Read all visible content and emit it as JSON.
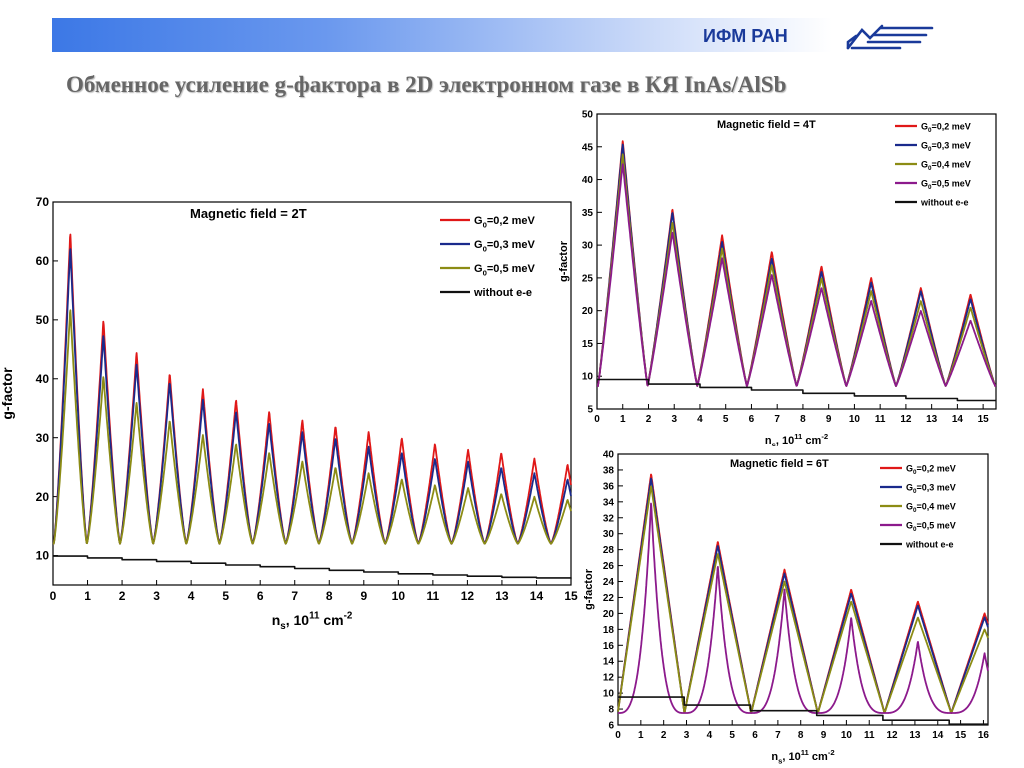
{
  "header": {
    "org": "ИФМ РАН"
  },
  "title": "Обменное усиление g-фактора в 2D электронном газе в КЯ InAs/AlSb",
  "chart_data": [
    {
      "id": "c2t",
      "type": "line",
      "title": "Magnetic field = 2T",
      "xlabel": "ns, 10^11 cm^-2",
      "xlabel_parts": {
        "main": "n",
        "sub": "s",
        "mid": ", 10",
        "sup1": "11",
        "unit": " cm",
        "sup2": "-2"
      },
      "ylabel": "g-factor",
      "xlim": [
        0,
        15
      ],
      "ylim": [
        5,
        70
      ],
      "xticks": [
        0,
        1,
        2,
        3,
        4,
        5,
        6,
        7,
        8,
        9,
        10,
        11,
        12,
        13,
        14,
        15
      ],
      "yticks": [
        10,
        20,
        30,
        40,
        50,
        60,
        70
      ],
      "legend_position": "top-right",
      "period": 0.96,
      "first_peak": 0.5,
      "ymin_osc": 12,
      "cusp": 1.3,
      "series": [
        {
          "label": {
            "g": "G",
            "sub": "0",
            "rest": "=0,2 meV"
          },
          "color": "#e01818",
          "kind": "osc",
          "peaks": [
            65,
            50,
            44.5,
            41,
            38.3,
            36.5,
            34.5,
            33,
            32,
            31,
            30,
            29,
            28,
            27.5,
            26.5,
            25.5
          ]
        },
        {
          "label": {
            "g": "G",
            "sub": "0",
            "rest": "=0,3 meV"
          },
          "color": "#1a2a8c",
          "kind": "osc",
          "peaks": [
            62.5,
            47.5,
            42.5,
            39.5,
            36.5,
            34.5,
            32.5,
            31,
            30,
            28.5,
            27.5,
            26.5,
            26,
            25,
            24,
            23
          ]
        },
        {
          "label": {
            "g": "G",
            "sub": "0",
            "rest": "=0,5 meV"
          },
          "color": "#8c8c14",
          "kind": "osc",
          "peaks": [
            52,
            40.5,
            36,
            33,
            30.5,
            29,
            27.5,
            26,
            25,
            24,
            23,
            22,
            21.5,
            20.5,
            20,
            19.5
          ]
        },
        {
          "label": {
            "g": "",
            "sub": "",
            "rest": "without e-e"
          },
          "color": "#111111",
          "kind": "step",
          "x": [
            0,
            1,
            2,
            3,
            4,
            5,
            6,
            7,
            8,
            9,
            10,
            11,
            12,
            13,
            14,
            15
          ],
          "values": [
            9.9,
            9.6,
            9.3,
            9.0,
            8.7,
            8.4,
            8.1,
            7.8,
            7.5,
            7.2,
            6.9,
            6.7,
            6.5,
            6.3,
            6.2,
            6.1
          ]
        }
      ]
    },
    {
      "id": "c4t",
      "type": "line",
      "title": "Magnetic field = 4T",
      "xlabel": "ns, 10^11 cm^-2",
      "xlabel_parts": {
        "main": "n",
        "sub": "s",
        "mid": ", 10",
        "sup1": "11",
        "unit": " cm",
        "sup2": "-2"
      },
      "ylabel": "g-factor",
      "xlim": [
        0,
        15.5
      ],
      "ylim": [
        5,
        50
      ],
      "xticks": [
        0,
        1,
        2,
        3,
        4,
        5,
        6,
        7,
        8,
        9,
        10,
        11,
        12,
        13,
        14,
        15
      ],
      "yticks": [
        5,
        10,
        15,
        20,
        25,
        30,
        35,
        40,
        45,
        50
      ],
      "legend_position": "top-right",
      "period": 1.93,
      "first_peak": 1.0,
      "ymin_osc": 8.5,
      "cusp": 1.1,
      "series": [
        {
          "label": {
            "g": "G",
            "sub": "0",
            "rest": "=0,2 meV"
          },
          "color": "#e01818",
          "kind": "osc",
          "peaks": [
            46,
            35.5,
            31.5,
            29,
            26.8,
            25,
            23.5,
            22.5
          ]
        },
        {
          "label": {
            "g": "G",
            "sub": "0",
            "rest": "=0,3 meV"
          },
          "color": "#1a2a8c",
          "kind": "osc",
          "peaks": [
            45.5,
            35,
            30.5,
            28,
            26,
            24.3,
            23,
            21.8
          ]
        },
        {
          "label": {
            "g": "G",
            "sub": "0",
            "rest": "=0,4 meV"
          },
          "color": "#8c8c14",
          "kind": "osc",
          "peaks": [
            44,
            33.5,
            29.5,
            27,
            25,
            23,
            21.5,
            20.5
          ]
        },
        {
          "label": {
            "g": "G",
            "sub": "0",
            "rest": "=0,5 meV"
          },
          "color": "#8c1a8c",
          "kind": "osc",
          "peaks": [
            42.5,
            32,
            28,
            25.5,
            23.5,
            21.5,
            20,
            18.5
          ]
        },
        {
          "label": {
            "g": "",
            "sub": "",
            "rest": "without e-e"
          },
          "color": "#111111",
          "kind": "step",
          "x": [
            0,
            2,
            4,
            6,
            8,
            10,
            12,
            14,
            15.5
          ],
          "values": [
            9.5,
            8.8,
            8.3,
            7.9,
            7.4,
            7.0,
            6.6,
            6.3,
            6.3
          ]
        }
      ]
    },
    {
      "id": "c6t",
      "type": "line",
      "title": "Magnetic field = 6T",
      "xlabel": "ns, 10^11 cm^-2",
      "xlabel_parts": {
        "main": "n",
        "sub": "s",
        "mid": ", 10",
        "sup1": "11",
        "unit": " cm",
        "sup2": "-2"
      },
      "ylabel": "g-factor",
      "xlim": [
        0,
        16.2
      ],
      "ylim": [
        6,
        40
      ],
      "xticks": [
        0,
        1,
        2,
        3,
        4,
        5,
        6,
        7,
        8,
        9,
        10,
        11,
        12,
        13,
        14,
        15,
        16
      ],
      "yticks": [
        6,
        8,
        10,
        12,
        14,
        16,
        18,
        20,
        22,
        24,
        26,
        28,
        30,
        32,
        34,
        36,
        38,
        40
      ],
      "legend_position": "top-right",
      "period": 2.92,
      "first_peak": 1.45,
      "ymin_osc": 7.5,
      "cusp": 1.0,
      "series": [
        {
          "label": {
            "g": "G",
            "sub": "0",
            "rest": "=0,2 meV"
          },
          "color": "#e01818",
          "kind": "osc",
          "peaks": [
            37.5,
            29,
            25.5,
            23,
            21.5,
            20
          ]
        },
        {
          "label": {
            "g": "G",
            "sub": "0",
            "rest": "=0,3 meV"
          },
          "color": "#1a2a8c",
          "kind": "osc",
          "peaks": [
            37,
            28.5,
            25,
            22.5,
            21,
            19.5
          ]
        },
        {
          "label": {
            "g": "G",
            "sub": "0",
            "rest": "=0,4 meV"
          },
          "color": "#8c8c14",
          "kind": "osc",
          "peaks": [
            36,
            27.5,
            24,
            21.5,
            19.5,
            18
          ]
        },
        {
          "label": {
            "g": "G",
            "sub": "0",
            "rest": "=0,5 meV"
          },
          "color": "#8c1a8c",
          "kind": "osc",
          "cusp": 3.2,
          "peaks": [
            34,
            26,
            23,
            19.5,
            16.5,
            15
          ]
        },
        {
          "label": {
            "g": "",
            "sub": "",
            "rest": "without e-e"
          },
          "color": "#111111",
          "kind": "step",
          "x": [
            0,
            2.9,
            5.8,
            8.7,
            11.6,
            14.5,
            16.2
          ],
          "values": [
            9.5,
            8.5,
            7.8,
            7.2,
            6.6,
            6.1,
            6.1
          ]
        }
      ]
    }
  ]
}
